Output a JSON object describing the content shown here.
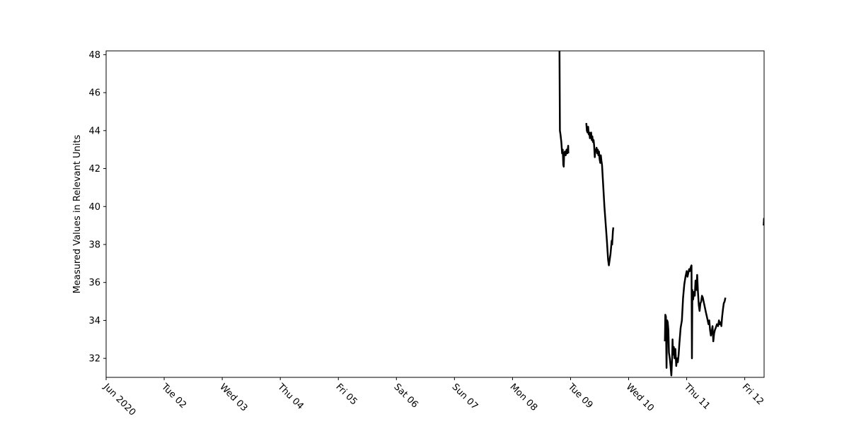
{
  "chart_data": {
    "type": "line",
    "title": "",
    "xlabel": "",
    "ylabel": "Measured Values in Relevant Units",
    "xlim": [
      "2020-06-01T00:00",
      "2020-06-12T08:00"
    ],
    "ylim": [
      31,
      48.2
    ],
    "grid": false,
    "legend": "none",
    "line_color": "#000000",
    "x_ticks": [
      {
        "date": "2020-06-01",
        "label": "Jun 2020"
      },
      {
        "date": "2020-06-02",
        "label": "Tue 02"
      },
      {
        "date": "2020-06-03",
        "label": "Wed 03"
      },
      {
        "date": "2020-06-04",
        "label": "Thu 04"
      },
      {
        "date": "2020-06-05",
        "label": "Fri 05"
      },
      {
        "date": "2020-06-06",
        "label": "Sat 06"
      },
      {
        "date": "2020-06-07",
        "label": "Sun 07"
      },
      {
        "date": "2020-06-08",
        "label": "Mon 08"
      },
      {
        "date": "2020-06-09",
        "label": "Tue 09"
      },
      {
        "date": "2020-06-10",
        "label": "Wed 10"
      },
      {
        "date": "2020-06-11",
        "label": "Thu 11"
      },
      {
        "date": "2020-06-12",
        "label": "Fri 12"
      }
    ],
    "y_ticks": [
      {
        "value": 32,
        "label": "32"
      },
      {
        "value": 34,
        "label": "34"
      },
      {
        "value": 36,
        "label": "36"
      },
      {
        "value": 38,
        "label": "38"
      },
      {
        "value": 40,
        "label": "40"
      },
      {
        "value": 42,
        "label": "42"
      },
      {
        "value": 44,
        "label": "44"
      },
      {
        "value": 46,
        "label": "46"
      },
      {
        "value": 48,
        "label": "48"
      }
    ],
    "segments": [
      [
        [
          "2020-06-08T19:25",
          48.2
        ],
        [
          "2020-06-08T19:35",
          44.0
        ],
        [
          "2020-06-08T19:50",
          43.8
        ],
        [
          "2020-06-08T20:10",
          43.4
        ],
        [
          "2020-06-08T20:30",
          42.8
        ],
        [
          "2020-06-08T20:45",
          43.0
        ],
        [
          "2020-06-08T21:00",
          42.2
        ],
        [
          "2020-06-08T21:10",
          42.1
        ],
        [
          "2020-06-08T21:20",
          42.8
        ],
        [
          "2020-06-08T21:40",
          42.9
        ],
        [
          "2020-06-08T22:00",
          42.7
        ],
        [
          "2020-06-08T22:20",
          43.0
        ],
        [
          "2020-06-08T22:40",
          42.8
        ],
        [
          "2020-06-08T23:00",
          43.2
        ],
        [
          "2020-06-08T23:05",
          42.8
        ]
      ],
      [
        [
          "2020-06-09T06:30",
          44.4
        ],
        [
          "2020-06-09T06:45",
          44.0
        ],
        [
          "2020-06-09T07:00",
          43.9
        ],
        [
          "2020-06-09T07:15",
          44.2
        ],
        [
          "2020-06-09T07:30",
          43.8
        ],
        [
          "2020-06-09T07:45",
          43.9
        ],
        [
          "2020-06-09T08:00",
          43.6
        ],
        [
          "2020-06-09T08:15",
          43.7
        ],
        [
          "2020-06-09T08:30",
          43.9
        ],
        [
          "2020-06-09T08:45",
          43.5
        ],
        [
          "2020-06-09T09:00",
          43.7
        ],
        [
          "2020-06-09T09:15",
          43.4
        ],
        [
          "2020-06-09T09:30",
          43.5
        ],
        [
          "2020-06-09T09:45",
          43.2
        ],
        [
          "2020-06-09T10:00",
          42.6
        ],
        [
          "2020-06-09T10:15",
          43.0
        ],
        [
          "2020-06-09T10:30",
          42.9
        ],
        [
          "2020-06-09T10:45",
          43.1
        ],
        [
          "2020-06-09T11:00",
          42.8
        ],
        [
          "2020-06-09T11:15",
          43.0
        ],
        [
          "2020-06-09T11:30",
          42.7
        ],
        [
          "2020-06-09T11:45",
          42.9
        ],
        [
          "2020-06-09T12:00",
          42.5
        ],
        [
          "2020-06-09T12:15",
          42.3
        ],
        [
          "2020-06-09T12:30",
          42.7
        ],
        [
          "2020-06-09T12:45",
          42.4
        ],
        [
          "2020-06-09T13:00",
          42.2
        ],
        [
          "2020-06-09T14:00",
          40.0
        ],
        [
          "2020-06-09T15:00",
          38.2
        ],
        [
          "2020-06-09T15:30",
          37.2
        ],
        [
          "2020-06-09T15:50",
          36.9
        ],
        [
          "2020-06-09T16:30",
          37.5
        ],
        [
          "2020-06-09T17:00",
          38.2
        ],
        [
          "2020-06-09T17:10",
          38.0
        ],
        [
          "2020-06-09T17:30",
          38.7
        ],
        [
          "2020-06-09T17:40",
          38.9
        ]
      ],
      [
        [
          "2020-06-10T15:00",
          32.9
        ],
        [
          "2020-06-10T15:10",
          34.3
        ],
        [
          "2020-06-10T15:25",
          34.2
        ],
        [
          "2020-06-10T15:40",
          31.5
        ],
        [
          "2020-06-10T15:55",
          34.0
        ],
        [
          "2020-06-10T16:10",
          33.9
        ],
        [
          "2020-06-10T16:25",
          33.5
        ],
        [
          "2020-06-10T16:40",
          32.3
        ],
        [
          "2020-06-10T17:00",
          32.0
        ],
        [
          "2020-06-10T17:20",
          31.6
        ],
        [
          "2020-06-10T17:40",
          31.1
        ],
        [
          "2020-06-10T18:00",
          32.1
        ],
        [
          "2020-06-10T18:10",
          33.0
        ],
        [
          "2020-06-10T18:20",
          32.2
        ],
        [
          "2020-06-10T18:40",
          32.6
        ],
        [
          "2020-06-10T19:00",
          32.0
        ],
        [
          "2020-06-10T19:20",
          32.5
        ],
        [
          "2020-06-10T19:40",
          31.6
        ],
        [
          "2020-06-10T20:00",
          32.0
        ],
        [
          "2020-06-10T20:20",
          31.8
        ],
        [
          "2020-06-10T20:40",
          32.2
        ],
        [
          "2020-06-10T21:00",
          32.8
        ],
        [
          "2020-06-10T21:30",
          33.6
        ],
        [
          "2020-06-10T22:00",
          34.0
        ],
        [
          "2020-06-10T22:30",
          35.2
        ],
        [
          "2020-06-10T23:00",
          35.9
        ],
        [
          "2020-06-10T23:30",
          36.3
        ],
        [
          "2020-06-11T00:00",
          36.6
        ],
        [
          "2020-06-11T00:20",
          36.3
        ],
        [
          "2020-06-11T00:40",
          36.5
        ],
        [
          "2020-06-11T01:00",
          36.7
        ],
        [
          "2020-06-11T01:20",
          36.6
        ],
        [
          "2020-06-11T01:40",
          36.8
        ],
        [
          "2020-06-11T02:00",
          36.9
        ],
        [
          "2020-06-11T02:10",
          32.0
        ],
        [
          "2020-06-11T02:20",
          35.6
        ],
        [
          "2020-06-11T02:40",
          35.1
        ],
        [
          "2020-06-11T03:00",
          35.5
        ],
        [
          "2020-06-11T03:20",
          35.3
        ],
        [
          "2020-06-11T03:40",
          36.1
        ],
        [
          "2020-06-11T04:00",
          35.6
        ],
        [
          "2020-06-11T04:20",
          36.4
        ],
        [
          "2020-06-11T04:40",
          35.5
        ],
        [
          "2020-06-11T05:00",
          34.8
        ],
        [
          "2020-06-11T05:20",
          34.5
        ],
        [
          "2020-06-11T05:40",
          34.9
        ],
        [
          "2020-06-11T06:00",
          35.0
        ],
        [
          "2020-06-11T06:20",
          35.3
        ],
        [
          "2020-06-11T06:40",
          35.2
        ],
        [
          "2020-06-11T07:00",
          35.0
        ],
        [
          "2020-06-11T07:30",
          34.7
        ],
        [
          "2020-06-11T08:00",
          34.4
        ],
        [
          "2020-06-11T08:30",
          34.1
        ],
        [
          "2020-06-11T09:00",
          33.8
        ],
        [
          "2020-06-11T09:20",
          34.0
        ],
        [
          "2020-06-11T09:40",
          33.5
        ],
        [
          "2020-06-11T10:00",
          33.2
        ],
        [
          "2020-06-11T10:20",
          33.4
        ],
        [
          "2020-06-11T10:40",
          33.7
        ],
        [
          "2020-06-11T11:00",
          32.9
        ],
        [
          "2020-06-11T11:20",
          33.3
        ],
        [
          "2020-06-11T11:40",
          33.5
        ],
        [
          "2020-06-11T12:00",
          33.6
        ],
        [
          "2020-06-11T12:30",
          33.8
        ],
        [
          "2020-06-11T13:00",
          33.7
        ],
        [
          "2020-06-11T13:20",
          34.0
        ],
        [
          "2020-06-11T13:40",
          33.8
        ],
        [
          "2020-06-11T14:00",
          33.9
        ],
        [
          "2020-06-11T14:20",
          33.7
        ],
        [
          "2020-06-11T14:40",
          34.2
        ],
        [
          "2020-06-11T15:00",
          34.6
        ],
        [
          "2020-06-11T15:20",
          34.9
        ],
        [
          "2020-06-11T15:40",
          35.0
        ],
        [
          "2020-06-11T16:00",
          35.2
        ]
      ],
      [
        [
          "2020-06-12T07:50",
          39.0
        ],
        [
          "2020-06-12T08:00",
          39.4
        ]
      ]
    ]
  }
}
